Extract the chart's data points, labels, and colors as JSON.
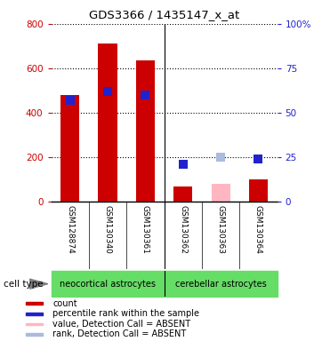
{
  "title": "GDS3366 / 1435147_x_at",
  "samples": [
    "GSM128874",
    "GSM130340",
    "GSM130361",
    "GSM130362",
    "GSM130363",
    "GSM130364"
  ],
  "group1_name": "neocortical astrocytes",
  "group2_name": "cerebellar astrocytes",
  "group1_indices": [
    0,
    1,
    2
  ],
  "group2_indices": [
    3,
    4,
    5
  ],
  "bar_values": [
    480,
    710,
    635,
    65,
    80,
    100
  ],
  "bar_colors": [
    "#CC0000",
    "#CC0000",
    "#CC0000",
    "#CC0000",
    "#FFB6C1",
    "#CC0000"
  ],
  "rank_values": [
    57,
    62,
    60,
    21,
    25,
    24
  ],
  "rank_colors": [
    "#2222CC",
    "#2222CC",
    "#2222CC",
    "#2222CC",
    "#AABBDD",
    "#2222CC"
  ],
  "absent_flags": [
    false,
    false,
    false,
    false,
    true,
    false
  ],
  "ylim_left": [
    0,
    800
  ],
  "ylim_right": [
    0,
    100
  ],
  "yticks_left": [
    0,
    200,
    400,
    600,
    800
  ],
  "yticks_right": [
    0,
    25,
    50,
    75,
    100
  ],
  "left_axis_color": "#CC0000",
  "right_axis_color": "#2222CC",
  "bar_width": 0.5,
  "legend_labels": [
    "count",
    "percentile rank within the sample",
    "value, Detection Call = ABSENT",
    "rank, Detection Call = ABSENT"
  ],
  "legend_colors": [
    "#CC0000",
    "#2222CC",
    "#FFB6C1",
    "#AABBDD"
  ],
  "green_color": "#66DD66",
  "gray_color": "#CCCCCC",
  "cell_type_label": "cell type",
  "background_color": "#FFFFFF"
}
